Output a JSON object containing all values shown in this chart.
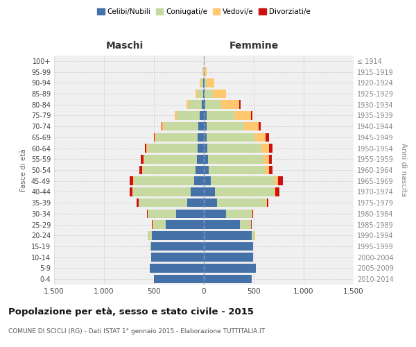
{
  "age_groups": [
    "0-4",
    "5-9",
    "10-14",
    "15-19",
    "20-24",
    "25-29",
    "30-34",
    "35-39",
    "40-44",
    "45-49",
    "50-54",
    "55-59",
    "60-64",
    "65-69",
    "70-74",
    "75-79",
    "80-84",
    "85-89",
    "90-94",
    "95-99",
    "100+"
  ],
  "birth_years": [
    "2010-2014",
    "2005-2009",
    "2000-2004",
    "1995-1999",
    "1990-1994",
    "1985-1989",
    "1980-1984",
    "1975-1979",
    "1970-1974",
    "1965-1969",
    "1960-1964",
    "1955-1959",
    "1950-1954",
    "1945-1949",
    "1940-1944",
    "1935-1939",
    "1930-1934",
    "1925-1929",
    "1920-1924",
    "1915-1919",
    "≤ 1914"
  ],
  "males": {
    "celibi": [
      500,
      540,
      530,
      530,
      520,
      380,
      280,
      170,
      130,
      100,
      80,
      70,
      65,
      60,
      55,
      40,
      20,
      10,
      5,
      2,
      2
    ],
    "coniugati": [
      0,
      0,
      0,
      10,
      40,
      130,
      280,
      480,
      580,
      600,
      530,
      530,
      500,
      420,
      340,
      230,
      130,
      50,
      20,
      5,
      0
    ],
    "vedovi": [
      0,
      0,
      0,
      0,
      5,
      5,
      0,
      5,
      5,
      5,
      5,
      5,
      10,
      10,
      20,
      20,
      25,
      20,
      15,
      5,
      0
    ],
    "divorziati": [
      0,
      0,
      0,
      0,
      0,
      5,
      10,
      20,
      30,
      40,
      30,
      30,
      15,
      10,
      10,
      5,
      0,
      0,
      0,
      0,
      0
    ]
  },
  "females": {
    "nubili": [
      480,
      520,
      490,
      490,
      480,
      360,
      220,
      130,
      110,
      70,
      50,
      40,
      35,
      30,
      30,
      25,
      15,
      10,
      5,
      2,
      2
    ],
    "coniugate": [
      0,
      0,
      0,
      5,
      30,
      110,
      260,
      490,
      590,
      640,
      560,
      560,
      540,
      480,
      370,
      280,
      160,
      80,
      20,
      5,
      0
    ],
    "vedove": [
      0,
      0,
      0,
      0,
      5,
      5,
      5,
      10,
      15,
      30,
      40,
      50,
      80,
      110,
      150,
      170,
      180,
      130,
      80,
      20,
      2
    ],
    "divorziate": [
      0,
      0,
      0,
      0,
      0,
      5,
      5,
      15,
      40,
      50,
      40,
      30,
      30,
      30,
      20,
      10,
      10,
      5,
      0,
      0,
      0
    ]
  },
  "colors": {
    "celibi": "#4472a8",
    "coniugati": "#c5d9a0",
    "vedovi": "#ffc86e",
    "divorziati": "#cc1111"
  },
  "xlim": 1500,
  "title": "Popolazione per età, sesso e stato civile - 2015",
  "subtitle": "COMUNE DI SCICLI (RG) - Dati ISTAT 1° gennaio 2015 - Elaborazione TUTTITALIA.IT",
  "ylabel_left": "Fasce di età",
  "ylabel_right": "Anni di nascita",
  "xlabel_left": "Maschi",
  "xlabel_right": "Femmine",
  "legend_labels": [
    "Celibi/Nubili",
    "Coniugati/e",
    "Vedovi/e",
    "Divorziati/e"
  ],
  "background_color": "#ffffff",
  "grid_color": "#cccccc"
}
